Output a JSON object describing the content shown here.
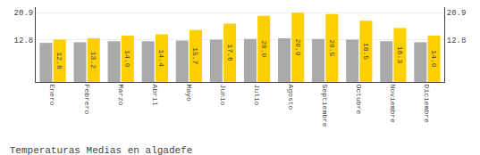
{
  "chart_data": {
    "type": "bar",
    "title": "Temperaturas Medias en algadefe",
    "categories": [
      "Enero",
      "Febrero",
      "Marzo",
      "Abril",
      "Mayo",
      "Junio",
      "Julio",
      "Agosto",
      "Septiembre",
      "Octubre",
      "Noviembre",
      "Diciembre"
    ],
    "series": [
      {
        "color": "#AAAAAA",
        "values": [
          11.8,
          12.0,
          12.3,
          12.3,
          12.5,
          12.8,
          13.0,
          13.2,
          13.0,
          12.8,
          12.3,
          12.0
        ]
      },
      {
        "color": "#FFD000",
        "values": [
          12.8,
          13.2,
          14.0,
          14.4,
          15.7,
          17.6,
          20.0,
          20.9,
          20.5,
          18.5,
          16.3,
          14.0
        ],
        "value_labels": [
          "12.8",
          "13.2",
          "14.0",
          "14.4",
          "15.7",
          "17.6",
          "20.0",
          "20.9",
          "20.5",
          "18.5",
          "16.3",
          "14.0"
        ],
        "data_labels": true
      }
    ],
    "ylim": [
      0,
      22.6
    ],
    "yticks": [
      12.8,
      20.9
    ],
    "y2lim": [
      0,
      22.6
    ],
    "y2ticks": [
      12.8,
      20.9
    ],
    "grid": true
  }
}
